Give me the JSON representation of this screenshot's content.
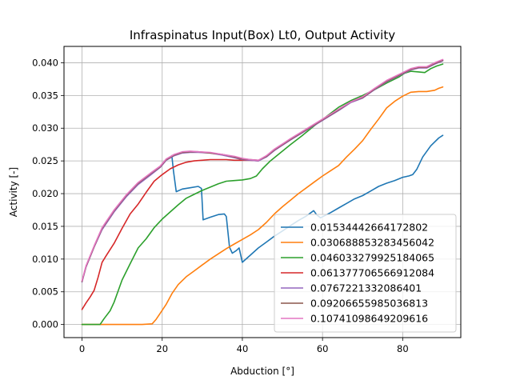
{
  "chart_data": {
    "type": "line",
    "title": "Infraspinatus Input(Box) Lt0, Output Activity",
    "xlabel": "Abduction [°]",
    "ylabel": "Activity [-]",
    "xlim": [
      -4.5,
      94.5
    ],
    "ylim": [
      -0.002,
      0.0425
    ],
    "xticks": [
      0,
      20,
      40,
      60,
      80
    ],
    "yticks": [
      0.0,
      0.005,
      0.01,
      0.015,
      0.02,
      0.025,
      0.03,
      0.035,
      0.04
    ],
    "ytick_labels": [
      "0.000",
      "0.005",
      "0.010",
      "0.015",
      "0.020",
      "0.025",
      "0.030",
      "0.035",
      "0.040"
    ],
    "grid": true,
    "legend_position": "lower-right",
    "colors": [
      "#1f77b4",
      "#ff7f0e",
      "#2ca02c",
      "#d62728",
      "#9467bd",
      "#8c564b",
      "#e377c2"
    ],
    "series": [
      {
        "name": "0.01534442664172802",
        "x": [
          22.4,
          22.8,
          23.5,
          25,
          27,
          29,
          29.8,
          30.2,
          32,
          34,
          35.5,
          36,
          36.8,
          37.5,
          38.5,
          39.2,
          40,
          42,
          44,
          46,
          48,
          50,
          52,
          54,
          56,
          57.8,
          58.5,
          59.5,
          62,
          64,
          66,
          68,
          70,
          72,
          74,
          76,
          78,
          80,
          81.5,
          82.5,
          83.5,
          85,
          87,
          89,
          90
        ],
        "values": [
          0.0258,
          0.0235,
          0.0203,
          0.0207,
          0.0209,
          0.0211,
          0.0208,
          0.016,
          0.0164,
          0.0168,
          0.0169,
          0.0165,
          0.0118,
          0.0109,
          0.0113,
          0.0117,
          0.0095,
          0.0106,
          0.0117,
          0.0126,
          0.0135,
          0.0143,
          0.0151,
          0.0159,
          0.0166,
          0.0174,
          0.0168,
          0.0163,
          0.0171,
          0.0178,
          0.0185,
          0.0192,
          0.0197,
          0.0204,
          0.0211,
          0.0216,
          0.022,
          0.0225,
          0.0227,
          0.0229,
          0.0237,
          0.0256,
          0.0273,
          0.0285,
          0.0289
        ]
      },
      {
        "name": "0.030688853283456042",
        "x": [
          0,
          5,
          10,
          15,
          17.5,
          18.5,
          19.5,
          21,
          22.5,
          24,
          26,
          28,
          30,
          32,
          34,
          36,
          38,
          40,
          42,
          44,
          46,
          48,
          50,
          52,
          54,
          56,
          58,
          60,
          62,
          64,
          66,
          68,
          70,
          72,
          74,
          76,
          78,
          80,
          82,
          84,
          86,
          88,
          89,
          90
        ],
        "values": [
          0.0,
          0.0,
          0.0,
          0.0,
          0.0001,
          0.0008,
          0.0017,
          0.0031,
          0.0048,
          0.0061,
          0.0073,
          0.0082,
          0.0091,
          0.01,
          0.0108,
          0.0116,
          0.0123,
          0.013,
          0.0137,
          0.0145,
          0.0156,
          0.0169,
          0.018,
          0.019,
          0.02,
          0.0209,
          0.0218,
          0.0227,
          0.0235,
          0.0243,
          0.0256,
          0.0268,
          0.0281,
          0.0298,
          0.0314,
          0.0331,
          0.0341,
          0.0349,
          0.0355,
          0.0356,
          0.0356,
          0.0358,
          0.0361,
          0.0363
        ]
      },
      {
        "name": "0.046033279925184065",
        "x": [
          0,
          4.5,
          5.5,
          7,
          8,
          9,
          10,
          12,
          14,
          16,
          18,
          20,
          22,
          24,
          26,
          28,
          30,
          32,
          34,
          36,
          38,
          40,
          42,
          43.5,
          45,
          47,
          49,
          52,
          55,
          58,
          61,
          64,
          67,
          70,
          73,
          76,
          79,
          80.5,
          82,
          84,
          85.5,
          87,
          88.5,
          90
        ],
        "values": [
          0.0,
          0.0,
          0.0009,
          0.0021,
          0.0034,
          0.0051,
          0.0068,
          0.0093,
          0.0117,
          0.0131,
          0.0148,
          0.0161,
          0.0172,
          0.0183,
          0.0193,
          0.0199,
          0.0205,
          0.021,
          0.0215,
          0.0219,
          0.022,
          0.0221,
          0.0223,
          0.0227,
          0.0238,
          0.025,
          0.026,
          0.0275,
          0.0289,
          0.0304,
          0.0318,
          0.0332,
          0.0342,
          0.035,
          0.0359,
          0.0369,
          0.0378,
          0.0384,
          0.0387,
          0.0386,
          0.0385,
          0.0391,
          0.0395,
          0.0398
        ]
      },
      {
        "name": "0.061377706566912084",
        "x": [
          0,
          1,
          2,
          3,
          4,
          5,
          6,
          8,
          10,
          12,
          14,
          16,
          18,
          20,
          22,
          24,
          26,
          28,
          30,
          32,
          34,
          36,
          38,
          40,
          42,
          44
        ],
        "values": [
          0.0023,
          0.0033,
          0.0042,
          0.0052,
          0.0072,
          0.0095,
          0.0105,
          0.0124,
          0.0147,
          0.0169,
          0.0184,
          0.0202,
          0.0219,
          0.0229,
          0.0238,
          0.0244,
          0.0248,
          0.025,
          0.0251,
          0.0252,
          0.0252,
          0.0252,
          0.0251,
          0.0251,
          0.0251,
          0.025
        ]
      },
      {
        "name": "0.0767221332086401",
        "x": [
          0,
          1,
          3,
          5,
          8,
          11,
          14,
          17,
          19.5,
          21,
          23,
          25,
          27,
          29,
          32,
          35,
          38,
          40,
          42,
          44,
          46,
          48,
          50,
          52,
          56,
          60,
          64,
          67,
          70,
          73,
          76,
          79,
          82,
          84,
          86,
          88,
          90
        ],
        "values": [
          0.0065,
          0.0088,
          0.0118,
          0.0145,
          0.0172,
          0.0195,
          0.0214,
          0.0228,
          0.024,
          0.0251,
          0.0258,
          0.0262,
          0.0263,
          0.0263,
          0.0262,
          0.0259,
          0.0255,
          0.0252,
          0.0251,
          0.025,
          0.0256,
          0.0266,
          0.0274,
          0.0282,
          0.0297,
          0.0312,
          0.0327,
          0.0339,
          0.0346,
          0.0359,
          0.0371,
          0.038,
          0.0389,
          0.0392,
          0.0392,
          0.0398,
          0.0403
        ]
      },
      {
        "name": "0.09206655985036813",
        "x": [
          0,
          1,
          3,
          5,
          8,
          11,
          14,
          17,
          19.5,
          21,
          23,
          25,
          27,
          29,
          32,
          35,
          38,
          40,
          42,
          44,
          46,
          48,
          50,
          52,
          56,
          60,
          64,
          67,
          70,
          73,
          76,
          79,
          82,
          84,
          86,
          88,
          90
        ],
        "values": [
          0.0066,
          0.0089,
          0.0119,
          0.0147,
          0.0174,
          0.0197,
          0.0216,
          0.023,
          0.0241,
          0.0252,
          0.0259,
          0.0263,
          0.0264,
          0.0264,
          0.0262,
          0.026,
          0.0256,
          0.0253,
          0.0252,
          0.0251,
          0.0257,
          0.0267,
          0.0275,
          0.0283,
          0.0298,
          0.0313,
          0.0328,
          0.034,
          0.0347,
          0.036,
          0.0372,
          0.0381,
          0.039,
          0.0393,
          0.0393,
          0.0399,
          0.0404
        ]
      },
      {
        "name": "0.10741098649209616",
        "x": [
          0,
          1,
          3,
          5,
          8,
          11,
          14,
          17,
          19.5,
          21,
          23,
          25,
          27,
          29,
          32,
          35,
          38,
          40,
          42,
          44,
          46,
          48,
          50,
          52,
          56,
          60,
          64,
          67,
          70,
          73,
          76,
          79,
          82,
          84,
          86,
          88,
          90
        ],
        "values": [
          0.0067,
          0.009,
          0.012,
          0.0148,
          0.0175,
          0.0198,
          0.0217,
          0.0231,
          0.0242,
          0.0253,
          0.026,
          0.0264,
          0.0265,
          0.0264,
          0.0263,
          0.026,
          0.0257,
          0.0254,
          0.0252,
          0.0251,
          0.0258,
          0.0268,
          0.0276,
          0.0284,
          0.0299,
          0.0314,
          0.0329,
          0.034,
          0.0348,
          0.0361,
          0.0373,
          0.0382,
          0.0391,
          0.0394,
          0.0394,
          0.04,
          0.0405
        ]
      }
    ]
  }
}
